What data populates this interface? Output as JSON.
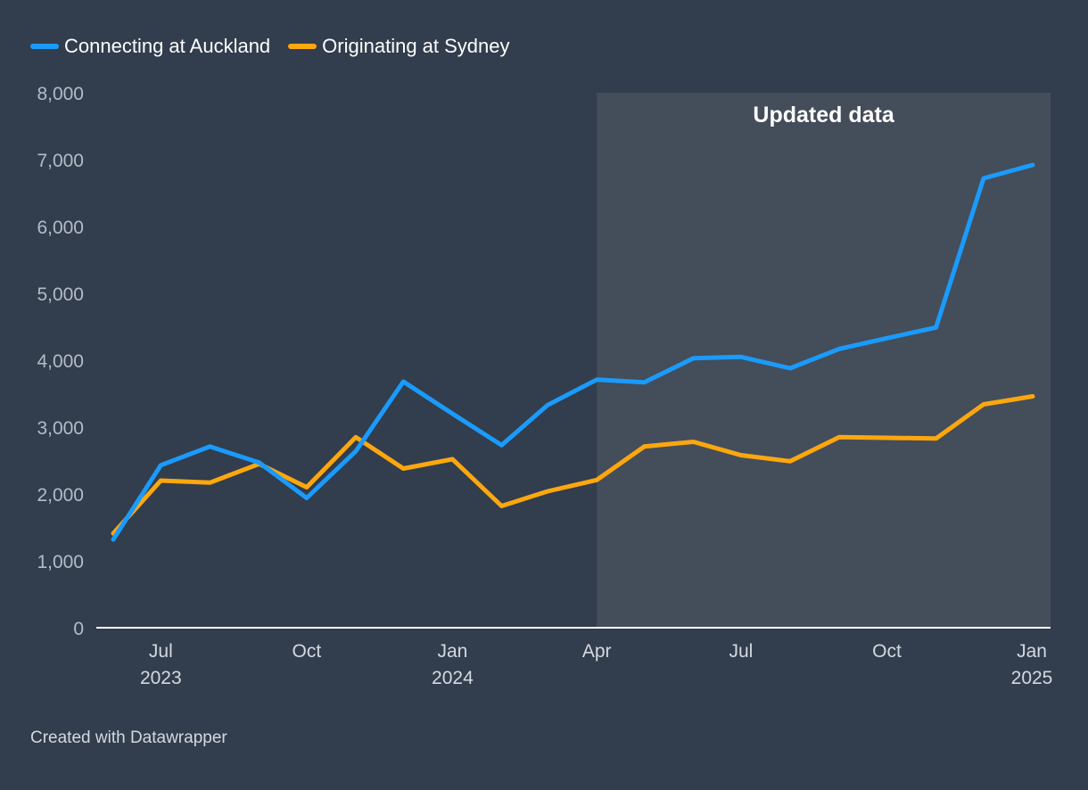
{
  "footer": {
    "credit": "Created with Datawrapper"
  },
  "chart_data": {
    "type": "line",
    "title": "",
    "xlabel": "",
    "ylabel": "",
    "ylim": [
      0,
      8000
    ],
    "y_ticks": [
      0,
      1000,
      2000,
      3000,
      4000,
      5000,
      6000,
      7000,
      8000
    ],
    "y_tick_labels": [
      "0",
      "1,000",
      "2,000",
      "3,000",
      "4,000",
      "5,000",
      "6,000",
      "7,000",
      "8,000"
    ],
    "x_ticks": [
      {
        "date": "2023-07-01",
        "month": "Jul",
        "year": "2023"
      },
      {
        "date": "2023-10-01",
        "month": "Oct",
        "year": ""
      },
      {
        "date": "2024-01-01",
        "month": "Jan",
        "year": "2024"
      },
      {
        "date": "2024-04-01",
        "month": "Apr",
        "year": ""
      },
      {
        "date": "2024-07-01",
        "month": "Jul",
        "year": ""
      },
      {
        "date": "2024-10-01",
        "month": "Oct",
        "year": ""
      },
      {
        "date": "2025-01-01",
        "month": "Jan",
        "year": "2025"
      }
    ],
    "grid": false,
    "legend_position": "top-left",
    "highlight_range": {
      "start": "2024-04-01",
      "end": "2025-01-01",
      "label": "Updated data",
      "color": "#444d5a"
    },
    "x": [
      "2023-06-01",
      "2023-07-01",
      "2023-08-01",
      "2023-09-01",
      "2023-10-01",
      "2023-11-01",
      "2023-12-01",
      "2024-01-01",
      "2024-02-01",
      "2024-03-01",
      "2024-04-01",
      "2024-05-01",
      "2024-06-01",
      "2024-07-01",
      "2024-08-01",
      "2024-09-01",
      "2024-10-01",
      "2024-11-01",
      "2024-12-01",
      "2025-01-01"
    ],
    "series": [
      {
        "name": "Connecting at Auckland",
        "color": "#1a9bfc",
        "values": [
          1320,
          2430,
          2710,
          2470,
          1940,
          2640,
          3680,
          3200,
          2730,
          3330,
          3710,
          3670,
          4030,
          4050,
          3880,
          4170,
          4330,
          4490,
          6720,
          6920
        ]
      },
      {
        "name": "Originating at Sydney",
        "color": "#fda70f",
        "values": [
          1410,
          2200,
          2170,
          2450,
          2100,
          2850,
          2380,
          2520,
          1820,
          2040,
          2210,
          2710,
          2780,
          2580,
          2490,
          2850,
          2840,
          2830,
          3340,
          3460
        ]
      }
    ]
  }
}
